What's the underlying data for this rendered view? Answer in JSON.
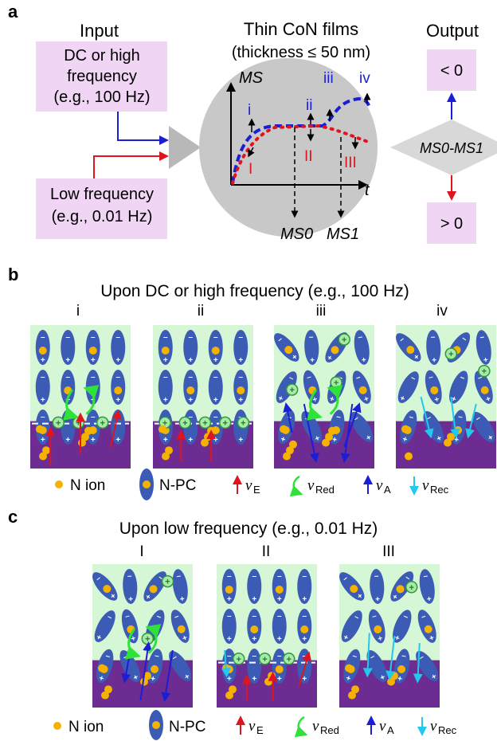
{
  "panel_a": {
    "letter": "a",
    "input_heading": "Input",
    "box_high": [
      "DC or high",
      "frequency",
      "(e.g., 100 Hz)"
    ],
    "box_low": [
      "Low frequency",
      "(e.g., 0.01 Hz)"
    ],
    "film_title": [
      "Thin CoN films",
      "(thickness ≤ 50 nm)"
    ],
    "output_heading": "Output",
    "out_top": "< 0",
    "out_bottom": "> 0",
    "diamond": "MS0-MS1",
    "ms_axis": "MS",
    "t_axis": "t",
    "ms0": "MS0",
    "ms1": "MS1",
    "blue_points": [
      "i",
      "ii",
      "iii",
      "iv"
    ],
    "red_points": [
      "I",
      "II",
      "III"
    ]
  },
  "panel_b": {
    "letter": "b",
    "title": "Upon DC or high frequency (e.g., 100 Hz)",
    "stages": [
      "i",
      "ii",
      "iii",
      "iv"
    ]
  },
  "panel_c": {
    "letter": "c",
    "title": "Upon low frequency (e.g., 0.01 Hz)",
    "stages": [
      "I",
      "II",
      "III"
    ]
  },
  "legend": {
    "n_ion": "N ion",
    "n_pc": "N-PC",
    "v_e": "E",
    "v_red": "Red",
    "v_a": "A",
    "v_rec": "Rec"
  },
  "colors": {
    "pink_box": "#f1d5f5",
    "film_circle": "#c8c8c8",
    "green_bg": "#d6f7d6",
    "purple": "#6d2c91",
    "ellipse": "#3b5bb5",
    "ion": "#f5b300",
    "red": "#e0141e",
    "blue": "#1a1fd6",
    "cyan": "#22c8ee",
    "green": "#2ee23a"
  }
}
